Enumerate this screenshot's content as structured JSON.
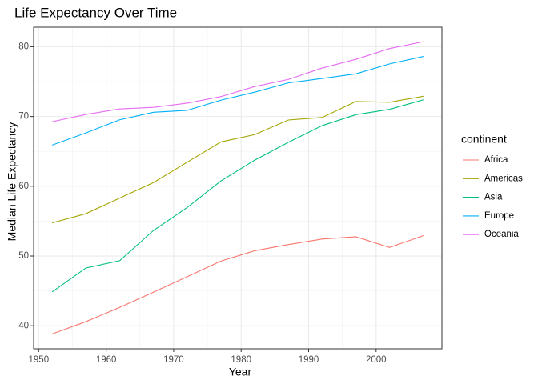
{
  "chart_data": {
    "type": "line",
    "title": "Life Expectancy Over Time",
    "x_label": "Year",
    "y_label": "Median Life Expectancy",
    "legend_title": "continent",
    "x": [
      1952,
      1957,
      1962,
      1967,
      1972,
      1977,
      1982,
      1987,
      1992,
      1997,
      2002,
      2007
    ],
    "series": [
      {
        "name": "Africa",
        "color": "#F8766D",
        "values": [
          38.833,
          40.593,
          42.631,
          44.811,
          47.032,
          49.273,
          50.756,
          51.64,
          52.429,
          52.759,
          51.236,
          52.927
        ]
      },
      {
        "name": "Americas",
        "color": "#A3A500",
        "values": [
          54.745,
          56.074,
          58.299,
          60.523,
          63.441,
          66.353,
          67.405,
          69.498,
          69.862,
          72.146,
          72.047,
          72.899
        ]
      },
      {
        "name": "Asia",
        "color": "#00BF7D",
        "values": [
          44.869,
          48.284,
          49.325,
          53.655,
          56.95,
          60.765,
          63.739,
          66.295,
          68.69,
          70.265,
          71.028,
          72.396
        ]
      },
      {
        "name": "Europe",
        "color": "#00B0F6",
        "values": [
          65.9,
          67.65,
          69.525,
          70.61,
          70.885,
          72.335,
          73.49,
          74.815,
          75.451,
          76.116,
          77.537,
          78.608
        ]
      },
      {
        "name": "Oceania",
        "color": "#E76BF3",
        "values": [
          69.255,
          70.295,
          71.085,
          71.31,
          71.91,
          72.855,
          74.29,
          75.32,
          76.945,
          78.19,
          79.74,
          80.719
        ]
      }
    ],
    "xlim": [
      1949.25,
      2009.75
    ],
    "xticks": [
      1950,
      1960,
      1970,
      1980,
      1990,
      2000
    ],
    "ylim": [
      36.7,
      82.8
    ],
    "yticks": [
      40,
      50,
      60,
      70,
      80
    ],
    "grid": true,
    "legend": "right"
  }
}
